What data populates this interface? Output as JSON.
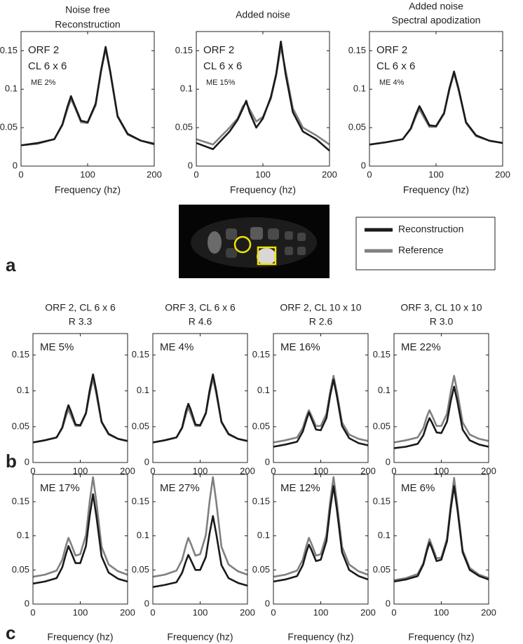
{
  "panel_labels": [
    "a",
    "b",
    "c"
  ],
  "chart_data": [
    {
      "type": "line",
      "title": "Noise free",
      "subtitle": "Reconstruction",
      "annotations": [
        "ORF 2",
        "CL 6 x 6",
        "ME 2%"
      ],
      "xlabel": "Frequency (hz)",
      "x": [
        0,
        25,
        50,
        62,
        70,
        75,
        80,
        90,
        100,
        112,
        120,
        127,
        134,
        145,
        160,
        180,
        200
      ],
      "xlim": [
        0,
        200
      ],
      "xticks": [
        0,
        100,
        200
      ],
      "ylim": [
        0,
        0.175
      ],
      "yticks": [
        0,
        0.05,
        0.1,
        0.15
      ],
      "series": [
        {
          "name": "Reconstruction",
          "color": "#1a1a1a",
          "values": [
            0.027,
            0.03,
            0.035,
            0.054,
            0.078,
            0.091,
            0.08,
            0.059,
            0.057,
            0.081,
            0.124,
            0.155,
            0.123,
            0.065,
            0.042,
            0.033,
            0.029
          ]
        },
        {
          "name": "Reference",
          "color": "#808080",
          "values": [
            0.027,
            0.029,
            0.035,
            0.053,
            0.075,
            0.087,
            0.078,
            0.057,
            0.056,
            0.079,
            0.122,
            0.152,
            0.121,
            0.064,
            0.041,
            0.033,
            0.028
          ]
        }
      ]
    },
    {
      "type": "line",
      "title": "Added noise",
      "annotations": [
        "ORF 2",
        "CL 6 x 6",
        "ME 15%"
      ],
      "xlabel": "Frequency (hz)",
      "x": [
        0,
        25,
        50,
        62,
        70,
        75,
        80,
        90,
        100,
        112,
        120,
        127,
        134,
        145,
        160,
        180,
        200
      ],
      "xlim": [
        0,
        200
      ],
      "xticks": [
        0,
        100,
        200
      ],
      "ylim": [
        0,
        0.175
      ],
      "yticks": [
        0,
        0.05,
        0.1,
        0.15
      ],
      "series": [
        {
          "color": "#1a1a1a",
          "values": [
            0.03,
            0.022,
            0.045,
            0.06,
            0.075,
            0.085,
            0.07,
            0.05,
            0.062,
            0.09,
            0.12,
            0.162,
            0.12,
            0.07,
            0.045,
            0.035,
            0.02
          ]
        },
        {
          "color": "#808080",
          "values": [
            0.035,
            0.028,
            0.05,
            0.062,
            0.078,
            0.082,
            0.074,
            0.058,
            0.064,
            0.088,
            0.118,
            0.155,
            0.125,
            0.075,
            0.05,
            0.04,
            0.028
          ]
        }
      ]
    },
    {
      "type": "line",
      "title": "Added noise",
      "subtitle": "Spectral apodization",
      "annotations": [
        "ORF 2",
        "CL 6 x 6",
        "ME 4%"
      ],
      "xlabel": "Frequency (hz)",
      "x": [
        0,
        25,
        50,
        62,
        70,
        75,
        80,
        90,
        100,
        112,
        120,
        127,
        134,
        145,
        160,
        180,
        200
      ],
      "xlim": [
        0,
        200
      ],
      "xticks": [
        0,
        100,
        200
      ],
      "ylim": [
        0,
        0.175
      ],
      "yticks": [
        0,
        0.05,
        0.1,
        0.15
      ],
      "series": [
        {
          "color": "#1a1a1a",
          "values": [
            0.028,
            0.031,
            0.035,
            0.049,
            0.068,
            0.078,
            0.07,
            0.053,
            0.052,
            0.069,
            0.101,
            0.123,
            0.1,
            0.057,
            0.04,
            0.033,
            0.03
          ]
        },
        {
          "color": "#808080",
          "values": [
            0.028,
            0.031,
            0.035,
            0.048,
            0.065,
            0.074,
            0.066,
            0.051,
            0.051,
            0.068,
            0.099,
            0.121,
            0.098,
            0.056,
            0.039,
            0.033,
            0.03
          ]
        }
      ]
    },
    {
      "type": "line",
      "title": "ORF 2, CL 6 x 6",
      "subtitle": "R 3.3",
      "annotations": [
        "ME 5%"
      ],
      "x": [
        0,
        25,
        50,
        62,
        70,
        75,
        80,
        90,
        100,
        112,
        120,
        127,
        134,
        145,
        160,
        180,
        200
      ],
      "xlim": [
        0,
        200
      ],
      "xticks": [
        0,
        100,
        200
      ],
      "ylim": [
        0,
        0.18
      ],
      "yticks": [
        0,
        0.05,
        0.1,
        0.15
      ],
      "series": [
        {
          "color": "#1a1a1a",
          "values": [
            0.028,
            0.031,
            0.035,
            0.049,
            0.07,
            0.08,
            0.072,
            0.053,
            0.052,
            0.069,
            0.101,
            0.123,
            0.1,
            0.057,
            0.04,
            0.033,
            0.03
          ]
        },
        {
          "color": "#808080",
          "values": [
            0.028,
            0.031,
            0.035,
            0.048,
            0.065,
            0.074,
            0.066,
            0.051,
            0.051,
            0.068,
            0.096,
            0.117,
            0.095,
            0.056,
            0.039,
            0.033,
            0.03
          ]
        }
      ]
    },
    {
      "type": "line",
      "title": "ORF 3, CL 6 x 6",
      "subtitle": "R 4.6",
      "annotations": [
        "ME 4%"
      ],
      "x": [
        0,
        25,
        50,
        62,
        70,
        75,
        80,
        90,
        100,
        112,
        120,
        127,
        134,
        145,
        160,
        180,
        200
      ],
      "xlim": [
        0,
        200
      ],
      "xticks": [
        0,
        100,
        200
      ],
      "ylim": [
        0,
        0.18
      ],
      "yticks": [
        0,
        0.05,
        0.1,
        0.15
      ],
      "series": [
        {
          "color": "#1a1a1a",
          "values": [
            0.028,
            0.031,
            0.035,
            0.049,
            0.072,
            0.082,
            0.074,
            0.053,
            0.052,
            0.069,
            0.101,
            0.123,
            0.1,
            0.057,
            0.04,
            0.033,
            0.03
          ]
        },
        {
          "color": "#808080",
          "values": [
            0.028,
            0.031,
            0.035,
            0.048,
            0.067,
            0.077,
            0.068,
            0.051,
            0.051,
            0.068,
            0.097,
            0.118,
            0.096,
            0.056,
            0.039,
            0.033,
            0.03
          ]
        }
      ]
    },
    {
      "type": "line",
      "title": "ORF 2, CL 10 x 10",
      "subtitle": "R 2.6",
      "annotations": [
        "ME 16%"
      ],
      "x": [
        0,
        25,
        50,
        62,
        70,
        75,
        80,
        90,
        100,
        112,
        120,
        127,
        134,
        145,
        160,
        180,
        200
      ],
      "xlim": [
        0,
        200
      ],
      "xticks": [
        0,
        100,
        200
      ],
      "ylim": [
        0,
        0.18
      ],
      "yticks": [
        0,
        0.05,
        0.1,
        0.15
      ],
      "series": [
        {
          "color": "#1a1a1a",
          "values": [
            0.022,
            0.025,
            0.029,
            0.043,
            0.06,
            0.07,
            0.062,
            0.046,
            0.045,
            0.062,
            0.094,
            0.116,
            0.093,
            0.051,
            0.034,
            0.027,
            0.024
          ]
        },
        {
          "color": "#808080",
          "values": [
            0.028,
            0.031,
            0.035,
            0.048,
            0.065,
            0.073,
            0.066,
            0.051,
            0.051,
            0.068,
            0.099,
            0.121,
            0.098,
            0.056,
            0.039,
            0.033,
            0.03
          ]
        }
      ]
    },
    {
      "type": "line",
      "title": "ORF 3, CL 10 x 10",
      "subtitle": "R 3.0",
      "annotations": [
        "ME 22%"
      ],
      "x": [
        0,
        25,
        50,
        62,
        70,
        75,
        80,
        90,
        100,
        112,
        120,
        127,
        134,
        145,
        160,
        180,
        200
      ],
      "xlim": [
        0,
        200
      ],
      "xticks": [
        0,
        100,
        200
      ],
      "ylim": [
        0,
        0.18
      ],
      "yticks": [
        0,
        0.05,
        0.1,
        0.15
      ],
      "series": [
        {
          "color": "#1a1a1a",
          "values": [
            0.02,
            0.022,
            0.026,
            0.038,
            0.054,
            0.062,
            0.056,
            0.042,
            0.041,
            0.057,
            0.086,
            0.106,
            0.085,
            0.046,
            0.031,
            0.025,
            0.022
          ]
        },
        {
          "color": "#808080",
          "values": [
            0.028,
            0.031,
            0.035,
            0.048,
            0.065,
            0.073,
            0.066,
            0.051,
            0.051,
            0.068,
            0.099,
            0.121,
            0.098,
            0.056,
            0.039,
            0.033,
            0.03
          ]
        }
      ]
    },
    {
      "type": "line",
      "annotations": [
        "ME 17%"
      ],
      "xlabel": "Frequency (hz)",
      "x": [
        0,
        25,
        50,
        62,
        70,
        75,
        80,
        90,
        100,
        112,
        120,
        127,
        134,
        145,
        160,
        180,
        200
      ],
      "xlim": [
        0,
        200
      ],
      "xticks": [
        0,
        100,
        200
      ],
      "ylim": [
        0,
        0.19
      ],
      "yticks": [
        0,
        0.05,
        0.1,
        0.15
      ],
      "series": [
        {
          "color": "#1a1a1a",
          "values": [
            0.03,
            0.033,
            0.038,
            0.054,
            0.074,
            0.085,
            0.077,
            0.06,
            0.06,
            0.085,
            0.13,
            0.161,
            0.129,
            0.07,
            0.046,
            0.037,
            0.033
          ]
        },
        {
          "color": "#808080",
          "values": [
            0.04,
            0.043,
            0.049,
            0.065,
            0.086,
            0.097,
            0.089,
            0.071,
            0.073,
            0.101,
            0.151,
            0.186,
            0.15,
            0.084,
            0.058,
            0.048,
            0.043
          ]
        }
      ]
    },
    {
      "type": "line",
      "annotations": [
        "ME 27%"
      ],
      "xlabel": "Frequency (hz)",
      "x": [
        0,
        25,
        50,
        62,
        70,
        75,
        80,
        90,
        100,
        112,
        120,
        127,
        134,
        145,
        160,
        180,
        200
      ],
      "xlim": [
        0,
        200
      ],
      "xticks": [
        0,
        100,
        200
      ],
      "ylim": [
        0,
        0.19
      ],
      "yticks": [
        0,
        0.05,
        0.1,
        0.15
      ],
      "series": [
        {
          "color": "#1a1a1a",
          "values": [
            0.025,
            0.028,
            0.032,
            0.046,
            0.063,
            0.072,
            0.065,
            0.05,
            0.05,
            0.069,
            0.104,
            0.129,
            0.103,
            0.057,
            0.038,
            0.031,
            0.027
          ]
        },
        {
          "color": "#808080",
          "values": [
            0.04,
            0.043,
            0.049,
            0.065,
            0.086,
            0.097,
            0.089,
            0.071,
            0.073,
            0.101,
            0.151,
            0.186,
            0.15,
            0.084,
            0.058,
            0.048,
            0.043
          ]
        }
      ]
    },
    {
      "type": "line",
      "annotations": [
        "ME 12%"
      ],
      "xlabel": "Frequency (hz)",
      "x": [
        0,
        25,
        50,
        62,
        70,
        75,
        80,
        90,
        100,
        112,
        120,
        127,
        134,
        145,
        160,
        180,
        200
      ],
      "xlim": [
        0,
        200
      ],
      "xticks": [
        0,
        100,
        200
      ],
      "ylim": [
        0,
        0.19
      ],
      "yticks": [
        0,
        0.05,
        0.1,
        0.15
      ],
      "series": [
        {
          "color": "#1a1a1a",
          "values": [
            0.033,
            0.036,
            0.041,
            0.057,
            0.077,
            0.087,
            0.08,
            0.063,
            0.065,
            0.092,
            0.14,
            0.173,
            0.139,
            0.076,
            0.05,
            0.041,
            0.036
          ]
        },
        {
          "color": "#808080",
          "values": [
            0.04,
            0.043,
            0.049,
            0.065,
            0.086,
            0.097,
            0.089,
            0.071,
            0.073,
            0.101,
            0.151,
            0.186,
            0.15,
            0.084,
            0.058,
            0.048,
            0.043
          ]
        }
      ]
    },
    {
      "type": "line",
      "annotations": [
        "ME 6%"
      ],
      "xlabel": "Frequency (hz)",
      "x": [
        0,
        25,
        50,
        62,
        70,
        75,
        80,
        90,
        100,
        112,
        120,
        127,
        134,
        145,
        160,
        180,
        200
      ],
      "xlim": [
        0,
        200
      ],
      "xticks": [
        0,
        100,
        200
      ],
      "ylim": [
        0,
        0.19
      ],
      "yticks": [
        0,
        0.05,
        0.1,
        0.15
      ],
      "series": [
        {
          "color": "#1a1a1a",
          "values": [
            0.033,
            0.036,
            0.041,
            0.058,
            0.079,
            0.09,
            0.082,
            0.063,
            0.065,
            0.092,
            0.14,
            0.173,
            0.139,
            0.076,
            0.05,
            0.041,
            0.036
          ]
        },
        {
          "color": "#808080",
          "values": [
            0.035,
            0.038,
            0.044,
            0.06,
            0.083,
            0.095,
            0.086,
            0.067,
            0.068,
            0.096,
            0.146,
            0.185,
            0.145,
            0.079,
            0.053,
            0.043,
            0.038
          ]
        }
      ]
    }
  ]
}
